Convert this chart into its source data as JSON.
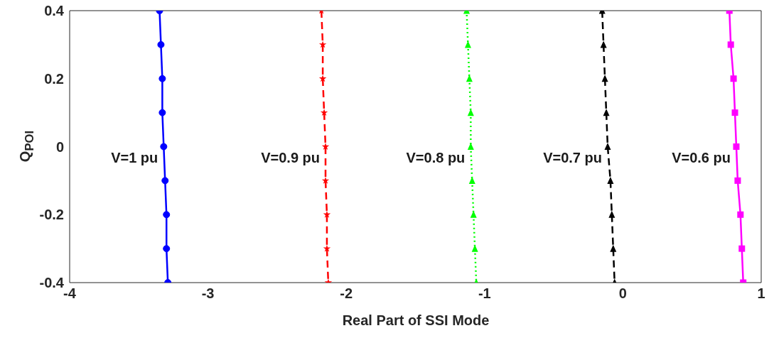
{
  "chart_data": {
    "type": "line",
    "xlabel": "Real Part of SSI Mode",
    "ylabel": "Q$_{POI}$",
    "xlim": [
      -4,
      1
    ],
    "xticks": [
      -4,
      -3,
      -2,
      -1,
      0,
      1
    ],
    "ylim": [
      -0.4,
      0.4
    ],
    "yticks": [
      0.4,
      0.2,
      0,
      -0.2,
      -0.4
    ],
    "grid": false,
    "legend": false,
    "series": [
      {
        "name": "V=1 pu",
        "color": "#0000ff",
        "marker": "circle",
        "line_style": "solid",
        "x": [
          -3.35,
          -3.34,
          -3.33,
          -3.33,
          -3.32,
          -3.31,
          -3.3,
          -3.3,
          -3.29
        ],
        "values": [
          0.4,
          0.3,
          0.2,
          0.1,
          0,
          -0.1,
          -0.2,
          -0.3,
          -0.4
        ]
      },
      {
        "name": "V=0.9 pu",
        "color": "#ff0000",
        "marker": "star",
        "line_style": "dashed",
        "x": [
          -2.18,
          -2.17,
          -2.17,
          -2.16,
          -2.15,
          -2.15,
          -2.14,
          -2.14,
          -2.13
        ],
        "values": [
          0.4,
          0.3,
          0.2,
          0.1,
          0,
          -0.1,
          -0.2,
          -0.3,
          -0.4
        ]
      },
      {
        "name": "V=0.8 pu",
        "color": "#00ff00",
        "marker": "triangle",
        "line_style": "dotted",
        "x": [
          -1.13,
          -1.12,
          -1.11,
          -1.1,
          -1.1,
          -1.09,
          -1.08,
          -1.07,
          -1.06
        ],
        "values": [
          0.4,
          0.3,
          0.2,
          0.1,
          0,
          -0.1,
          -0.2,
          -0.3,
          -0.4
        ]
      },
      {
        "name": "V=0.7 pu",
        "color": "#000000",
        "marker": "triangle",
        "line_style": "dashed",
        "x": [
          -0.15,
          -0.14,
          -0.13,
          -0.12,
          -0.11,
          -0.09,
          -0.08,
          -0.07,
          -0.06
        ],
        "values": [
          0.4,
          0.3,
          0.2,
          0.1,
          0,
          -0.1,
          -0.2,
          -0.3,
          -0.4
        ]
      },
      {
        "name": "V=0.6 pu",
        "color": "#ff00ff",
        "marker": "square",
        "line_style": "solid",
        "x": [
          0.77,
          0.78,
          0.8,
          0.81,
          0.82,
          0.83,
          0.85,
          0.86,
          0.87
        ],
        "values": [
          0.4,
          0.3,
          0.2,
          0.1,
          0,
          -0.1,
          -0.2,
          -0.3,
          -0.4
        ]
      }
    ]
  }
}
